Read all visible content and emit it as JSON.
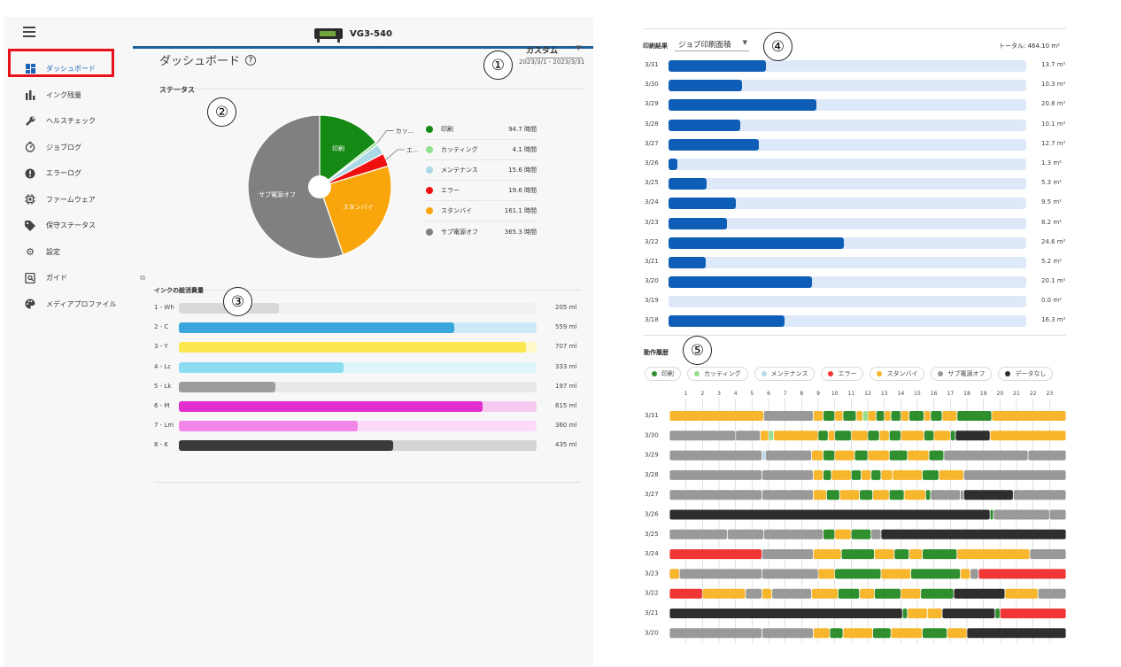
{
  "device": {
    "name": "VG3-540"
  },
  "sidebar": {
    "items": [
      {
        "label": "ダッシュボード",
        "icon": "dashboard-icon"
      },
      {
        "label": "インク残量",
        "icon": "bar-chart-icon"
      },
      {
        "label": "ヘルスチェック",
        "icon": "wrench-icon"
      },
      {
        "label": "ジョブログ",
        "icon": "timer-icon"
      },
      {
        "label": "エラーログ",
        "icon": "alert-icon"
      },
      {
        "label": "ファームウェア",
        "icon": "chip-icon"
      },
      {
        "label": "保守ステータス",
        "icon": "tag-icon"
      },
      {
        "label": "設定",
        "icon": "gear-icon"
      },
      {
        "label": "ガイド",
        "icon": "guide-icon"
      },
      {
        "label": "メディアプロファイル",
        "icon": "palette-icon"
      }
    ]
  },
  "dashboard": {
    "title": "ダッシュボード",
    "range_label": "カスタム",
    "range_dates": "2023/3/1 - 2023/3/31"
  },
  "status": {
    "label": "ステータス",
    "slices": [
      {
        "name": "印刷",
        "pie_label": "印刷",
        "value_text": "94.7 時間",
        "hours": 94.7,
        "color": "#148a14"
      },
      {
        "name": "カッティング",
        "pie_label": "カッ...",
        "value_text": "4.1 時間",
        "hours": 4.1,
        "color": "#8ee08e"
      },
      {
        "name": "メンテナンス",
        "pie_label": "",
        "value_text": "15.6 時間",
        "hours": 15.6,
        "color": "#acd9e6"
      },
      {
        "name": "エラー",
        "pie_label": "エ...",
        "value_text": "19.6 時間",
        "hours": 19.6,
        "color": "#ee0f0f"
      },
      {
        "name": "スタンバイ",
        "pie_label": "スタンバイ",
        "value_text": "161.1 時間",
        "hours": 161.1,
        "color": "#f9a60c"
      },
      {
        "name": "サブ電源オフ",
        "pie_label": "サブ電源オフ",
        "value_text": "365.3 時間",
        "hours": 365.3,
        "color": "#808080"
      }
    ]
  },
  "ink": {
    "label": "インクの総消費量",
    "rows": [
      {
        "name": "1 - Wh",
        "value_text": "205 ml",
        "fraction": 0.28,
        "fill": "#d9d9d9",
        "track": "#f0f0f0"
      },
      {
        "name": "2 - C",
        "value_text": "559 ml",
        "fraction": 0.77,
        "fill": "#3ba6dc",
        "track": "#cce9f7"
      },
      {
        "name": "3 - Y",
        "value_text": "707 ml",
        "fraction": 0.97,
        "fill": "#fbe850",
        "track": "#fdf8c9"
      },
      {
        "name": "4 - Lc",
        "value_text": "333 ml",
        "fraction": 0.46,
        "fill": "#8bdcf1",
        "track": "#def5fb"
      },
      {
        "name": "5 - Lk",
        "value_text": "197 ml",
        "fraction": 0.27,
        "fill": "#9c9c9c",
        "track": "#e8e8e8"
      },
      {
        "name": "6 - M",
        "value_text": "615 ml",
        "fraction": 0.85,
        "fill": "#e12fd0",
        "track": "#f6c9f1"
      },
      {
        "name": "7 - Lm",
        "value_text": "360 ml",
        "fraction": 0.5,
        "fill": "#f286ea",
        "track": "#fcdaf8"
      },
      {
        "name": "8 - K",
        "value_text": "435 ml",
        "fraction": 0.6,
        "fill": "#3a3a3a",
        "track": "#d4d4d4"
      }
    ]
  },
  "print_results": {
    "label": "印刷結果",
    "select_value": "ジョブ印刷面積",
    "total": "トータル: 464.10 m²",
    "max": 24.6,
    "rows": [
      {
        "date": "3/31",
        "value": 13.7,
        "value_text": "13.7 m²"
      },
      {
        "date": "3/30",
        "value": 10.3,
        "value_text": "10.3 m²"
      },
      {
        "date": "3/29",
        "value": 20.8,
        "value_text": "20.8 m²"
      },
      {
        "date": "3/28",
        "value": 10.1,
        "value_text": "10.1 m²"
      },
      {
        "date": "3/27",
        "value": 12.7,
        "value_text": "12.7 m²"
      },
      {
        "date": "3/26",
        "value": 1.3,
        "value_text": "1.3 m²"
      },
      {
        "date": "3/25",
        "value": 5.3,
        "value_text": "5.3 m²"
      },
      {
        "date": "3/24",
        "value": 9.5,
        "value_text": "9.5 m²"
      },
      {
        "date": "3/23",
        "value": 8.2,
        "value_text": "8.2 m²"
      },
      {
        "date": "3/22",
        "value": 24.6,
        "value_text": "24.6 m²"
      },
      {
        "date": "3/21",
        "value": 5.2,
        "value_text": "5.2 m²"
      },
      {
        "date": "3/20",
        "value": 20.1,
        "value_text": "20.1 m²"
      },
      {
        "date": "3/19",
        "value": 0.0,
        "value_text": "0.0 m²"
      },
      {
        "date": "3/18",
        "value": 16.3,
        "value_text": "16.3 m²"
      }
    ]
  },
  "history": {
    "label": "動作履歴",
    "legend": [
      {
        "name": "印刷",
        "key": "P",
        "color": "#2f8f2f"
      },
      {
        "name": "カッティング",
        "key": "C",
        "color": "#95e08e"
      },
      {
        "name": "メンテナンス",
        "key": "M",
        "color": "#b4dbe8"
      },
      {
        "name": "エラー",
        "key": "E",
        "color": "#f03535"
      },
      {
        "name": "スタンバイ",
        "key": "S",
        "color": "#f8b62d"
      },
      {
        "name": "サブ電源オフ",
        "key": "O",
        "color": "#999999"
      },
      {
        "name": "データなし",
        "key": "N",
        "color": "#2e2e2e"
      }
    ],
    "hours": [
      "1",
      "2",
      "3",
      "4",
      "5",
      "6",
      "7",
      "8",
      "9",
      "10",
      "11",
      "12",
      "13",
      "14",
      "15",
      "16",
      "17",
      "18",
      "19",
      "20",
      "21",
      "22",
      "23"
    ],
    "rows": [
      {
        "date": "3/31",
        "segments": [
          [
            "S",
            0,
            5.7
          ],
          [
            "O",
            5.7,
            8.7
          ],
          [
            "S",
            8.7,
            9.3
          ],
          [
            "P",
            9.3,
            10
          ],
          [
            "S",
            10,
            10.5
          ],
          [
            "P",
            10.5,
            11.3
          ],
          [
            "S",
            11.3,
            11.7
          ],
          [
            "C",
            11.7,
            12
          ],
          [
            "S",
            12,
            12.5
          ],
          [
            "P",
            12.5,
            13
          ],
          [
            "S",
            13,
            13.4
          ],
          [
            "P",
            13.4,
            14
          ],
          [
            "S",
            14,
            14.5
          ],
          [
            "P",
            14.5,
            15.4
          ],
          [
            "S",
            15.4,
            15.8
          ],
          [
            "P",
            15.8,
            16.5
          ],
          [
            "S",
            16.5,
            17.4
          ],
          [
            "P",
            17.4,
            19.5
          ],
          [
            "S",
            19.5,
            24
          ]
        ]
      },
      {
        "date": "3/30",
        "segments": [
          [
            "O",
            0,
            4
          ],
          [
            "O",
            4,
            5.5
          ],
          [
            "S",
            5.5,
            6
          ],
          [
            "C",
            6,
            6.3
          ],
          [
            "S",
            6.3,
            9
          ],
          [
            "P",
            9,
            9.6
          ],
          [
            "S",
            9.6,
            10
          ],
          [
            "P",
            10,
            11
          ],
          [
            "S",
            11,
            12
          ],
          [
            "P",
            12,
            12.7
          ],
          [
            "S",
            12.7,
            13.3
          ],
          [
            "P",
            13.3,
            14
          ],
          [
            "S",
            14,
            15.4
          ],
          [
            "P",
            15.4,
            16
          ],
          [
            "S",
            16,
            17
          ],
          [
            "P",
            17,
            17.3
          ],
          [
            "N",
            17.3,
            19.4
          ],
          [
            "S",
            19.4,
            24
          ]
        ]
      },
      {
        "date": "3/29",
        "segments": [
          [
            "O",
            0,
            5.6
          ],
          [
            "M",
            5.6,
            5.8
          ],
          [
            "O",
            5.8,
            8.6
          ],
          [
            "S",
            8.6,
            9.3
          ],
          [
            "P",
            9.3,
            10
          ],
          [
            "S",
            10,
            11.2
          ],
          [
            "P",
            11.2,
            12
          ],
          [
            "S",
            12,
            13.3
          ],
          [
            "P",
            13.3,
            14.4
          ],
          [
            "S",
            14.4,
            15.7
          ],
          [
            "P",
            15.7,
            16.6
          ],
          [
            "O",
            16.6,
            21.7
          ],
          [
            "O",
            21.7,
            24
          ]
        ]
      },
      {
        "date": "3/28",
        "segments": [
          [
            "O",
            0,
            5.6
          ],
          [
            "O",
            5.6,
            8.7
          ],
          [
            "S",
            8.7,
            9.3
          ],
          [
            "P",
            9.3,
            9.8
          ],
          [
            "S",
            9.8,
            11
          ],
          [
            "P",
            11,
            11.6
          ],
          [
            "S",
            11.6,
            12.2
          ],
          [
            "P",
            12.2,
            12.8
          ],
          [
            "S",
            12.8,
            13.5
          ],
          [
            "S",
            13.5,
            15.3
          ],
          [
            "P",
            15.3,
            16.3
          ],
          [
            "S",
            16.3,
            17.8
          ],
          [
            "O",
            17.8,
            24
          ]
        ]
      },
      {
        "date": "3/27",
        "segments": [
          [
            "O",
            0,
            5.6
          ],
          [
            "O",
            5.6,
            8.7
          ],
          [
            "S",
            8.7,
            9.5
          ],
          [
            "P",
            9.5,
            10.3
          ],
          [
            "S",
            10.3,
            11.5
          ],
          [
            "P",
            11.5,
            12.3
          ],
          [
            "S",
            12.3,
            13.3
          ],
          [
            "P",
            13.3,
            14.2
          ],
          [
            "S",
            14.2,
            15.5
          ],
          [
            "P",
            15.5,
            15.8
          ],
          [
            "O",
            15.8,
            17.6
          ],
          [
            "O",
            17.6,
            17.8
          ],
          [
            "N",
            17.8,
            20.8
          ],
          [
            "O",
            20.8,
            24
          ]
        ]
      },
      {
        "date": "3/26",
        "segments": [
          [
            "N",
            0,
            19.4
          ],
          [
            "P",
            19.4,
            19.6
          ],
          [
            "O",
            19.6,
            23
          ],
          [
            "O",
            23,
            24
          ]
        ]
      },
      {
        "date": "3/25",
        "segments": [
          [
            "O",
            0,
            3.5
          ],
          [
            "O",
            3.5,
            5.7
          ],
          [
            "O",
            5.7,
            9.3
          ],
          [
            "P",
            9.3,
            10
          ],
          [
            "S",
            10,
            11
          ],
          [
            "P",
            11,
            12.2
          ],
          [
            "O",
            12.2,
            12.8
          ],
          [
            "N",
            12.8,
            24
          ]
        ]
      },
      {
        "date": "3/24",
        "segments": [
          [
            "E",
            0,
            5.6
          ],
          [
            "O",
            5.6,
            8.7
          ],
          [
            "S",
            8.7,
            10.4
          ],
          [
            "P",
            10.4,
            12.4
          ],
          [
            "S",
            12.4,
            13.6
          ],
          [
            "P",
            13.6,
            14.5
          ],
          [
            "S",
            14.5,
            15.3
          ],
          [
            "P",
            15.3,
            17.4
          ],
          [
            "S",
            17.4,
            21.8
          ],
          [
            "O",
            21.8,
            24
          ]
        ]
      },
      {
        "date": "3/23",
        "segments": [
          [
            "O",
            0,
            0.6
          ],
          [
            "S",
            0,
            0.6
          ],
          [
            "O",
            0.6,
            5.6
          ],
          [
            "O",
            5.6,
            9
          ],
          [
            "S",
            9,
            10
          ],
          [
            "P",
            10,
            12.8
          ],
          [
            "S",
            12.8,
            14.6
          ],
          [
            "P",
            14.6,
            17.6
          ],
          [
            "S",
            17.6,
            18.2
          ],
          [
            "O",
            18.2,
            18.7
          ],
          [
            "E",
            18.7,
            24
          ]
        ]
      },
      {
        "date": "3/22",
        "segments": [
          [
            "E",
            0,
            2
          ],
          [
            "S",
            2,
            4.6
          ],
          [
            "O",
            4.6,
            5.6
          ],
          [
            "S",
            5.6,
            6.2
          ],
          [
            "O",
            6.2,
            8.6
          ],
          [
            "S",
            8.6,
            10.2
          ],
          [
            "P",
            10.2,
            11.5
          ],
          [
            "S",
            11.5,
            12.4
          ],
          [
            "P",
            12.4,
            14
          ],
          [
            "S",
            14,
            15.2
          ],
          [
            "P",
            15.2,
            17.2
          ],
          [
            "N",
            17.2,
            20.3
          ],
          [
            "S",
            20.3,
            22.3
          ],
          [
            "O",
            22.3,
            24
          ]
        ]
      },
      {
        "date": "3/21",
        "segments": [
          [
            "N",
            0,
            14.1
          ],
          [
            "P",
            14.1,
            14.4
          ],
          [
            "S",
            14.4,
            15.6
          ],
          [
            "S",
            15.6,
            16.5
          ],
          [
            "N",
            16.5,
            19.7
          ],
          [
            "P",
            19.7,
            20
          ],
          [
            "E",
            20,
            24
          ]
        ]
      },
      {
        "date": "3/20",
        "segments": [
          [
            "O",
            0,
            5.6
          ],
          [
            "O",
            5.6,
            8.7
          ],
          [
            "S",
            8.7,
            9.7
          ],
          [
            "P",
            9.7,
            10.5
          ],
          [
            "S",
            10.5,
            12.3
          ],
          [
            "P",
            12.3,
            13.4
          ],
          [
            "S",
            13.4,
            15.3
          ],
          [
            "P",
            15.3,
            16.8
          ],
          [
            "S",
            16.8,
            18
          ],
          [
            "N",
            18,
            24
          ]
        ]
      }
    ]
  },
  "callouts": [
    "①",
    "②",
    "③",
    "④",
    "⑤"
  ]
}
